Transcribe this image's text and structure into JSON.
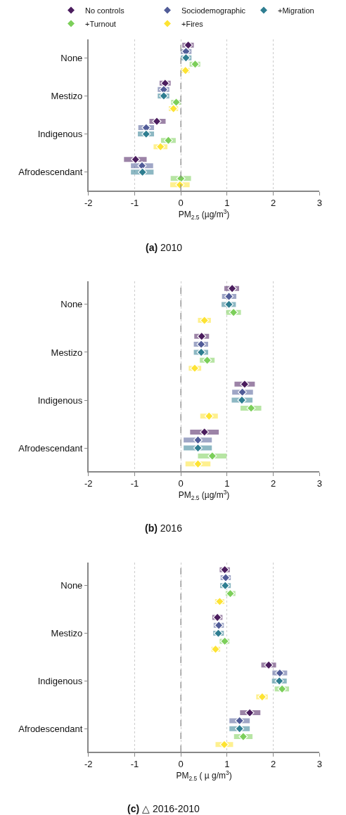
{
  "chart_data": [
    {
      "type": "scatter",
      "orientation": "horizontal",
      "title": "(a) 2010",
      "xlabel": "PM$_{2.5}$ (µg/m$^{3}$)",
      "categories": [
        "None",
        "Mestizo",
        "Indigenous",
        "Afrodescendant"
      ],
      "xlim": [
        -2,
        3
      ],
      "xticks": [
        -2,
        -1,
        0,
        1,
        2,
        3
      ],
      "grid": "x",
      "marker": "diamond",
      "legend": "top",
      "ref_lines": [
        {
          "axis": "x",
          "value": 0,
          "line_style": "dashed",
          "color": "#8c8c8c"
        }
      ],
      "series": [
        {
          "name": "No controls",
          "color": "#4b1d5e",
          "values": [
            0.16,
            -0.34,
            -0.52,
            -0.98
          ],
          "errors": [
            [
              0.03,
              0.28
            ],
            [
              -0.46,
              -0.22
            ],
            [
              -0.68,
              -0.33
            ],
            [
              -1.23,
              -0.74
            ]
          ]
        },
        {
          "name": "Sociodemographic",
          "color": "#515c98",
          "values": [
            0.11,
            -0.37,
            -0.75,
            -0.84
          ],
          "errors": [
            [
              0.0,
              0.23
            ],
            [
              -0.5,
              -0.25
            ],
            [
              -0.92,
              -0.58
            ],
            [
              -1.08,
              -0.6
            ]
          ]
        },
        {
          "name": "+Migration",
          "color": "#2f7e91",
          "values": [
            0.11,
            -0.37,
            -0.75,
            -0.83
          ],
          "errors": [
            [
              0.0,
              0.23
            ],
            [
              -0.5,
              -0.25
            ],
            [
              -0.93,
              -0.58
            ],
            [
              -1.08,
              -0.59
            ]
          ]
        },
        {
          "name": "+Turnout",
          "color": "#7ccf5a",
          "values": [
            0.31,
            -0.1,
            -0.27,
            0.0
          ],
          "errors": [
            [
              0.19,
              0.42
            ],
            [
              -0.21,
              0.0
            ],
            [
              -0.43,
              -0.11
            ],
            [
              -0.22,
              0.22
            ]
          ]
        },
        {
          "name": "+Fires",
          "color": "#fde333",
          "values": [
            0.1,
            -0.16,
            -0.44,
            -0.02
          ],
          "errors": [
            [
              0.0,
              0.19
            ],
            [
              -0.26,
              -0.06
            ],
            [
              -0.59,
              -0.29
            ],
            [
              -0.23,
              0.19
            ]
          ]
        }
      ]
    },
    {
      "type": "scatter",
      "orientation": "horizontal",
      "title": "(b) 2016",
      "xlabel": "PM$_{2.5}$ (µg/m$^{3}$)",
      "categories": [
        "None",
        "Mestizo",
        "Indigenous",
        "Afrodescendant"
      ],
      "xlim": [
        -2,
        3
      ],
      "xticks": [
        -2,
        -1,
        0,
        1,
        2,
        3
      ],
      "grid": "x",
      "marker": "diamond",
      "ref_lines": [
        {
          "axis": "x",
          "value": 0,
          "line_style": "dashed",
          "color": "#8c8c8c"
        }
      ],
      "series": [
        {
          "color": "#4b1d5e",
          "values": [
            1.11,
            0.45,
            1.38,
            0.51
          ],
          "errors": [
            [
              0.94,
              1.26
            ],
            [
              0.29,
              0.61
            ],
            [
              1.16,
              1.6
            ],
            [
              0.2,
              0.82
            ]
          ]
        },
        {
          "color": "#515c98",
          "values": [
            1.04,
            0.44,
            1.33,
            0.37
          ],
          "errors": [
            [
              0.89,
              1.2
            ],
            [
              0.28,
              0.59
            ],
            [
              1.11,
              1.56
            ],
            [
              0.06,
              0.67
            ]
          ]
        },
        {
          "color": "#2f7e91",
          "values": [
            1.04,
            0.44,
            1.32,
            0.37
          ],
          "errors": [
            [
              0.88,
              1.19
            ],
            [
              0.28,
              0.59
            ],
            [
              1.1,
              1.55
            ],
            [
              0.06,
              0.67
            ]
          ]
        },
        {
          "color": "#7ccf5a",
          "values": [
            1.14,
            0.57,
            1.52,
            0.68
          ],
          "errors": [
            [
              0.98,
              1.3
            ],
            [
              0.41,
              0.73
            ],
            [
              1.29,
              1.74
            ],
            [
              0.37,
              0.99
            ]
          ]
        },
        {
          "color": "#fde333",
          "values": [
            0.51,
            0.3,
            0.61,
            0.37
          ],
          "errors": [
            [
              0.37,
              0.65
            ],
            [
              0.17,
              0.44
            ],
            [
              0.42,
              0.8
            ],
            [
              0.1,
              0.64
            ]
          ]
        }
      ]
    },
    {
      "type": "scatter",
      "orientation": "horizontal",
      "title": "(c) △ 2016-2010",
      "xlabel": "PM$_{2.5}$ ( µ g/m$^{3}$)",
      "categories": [
        "None",
        "Mestizo",
        "Indigenous",
        "Afrodescendant"
      ],
      "xlim": [
        -2,
        3
      ],
      "xticks": [
        -2,
        -1,
        0,
        1,
        2,
        3
      ],
      "grid": "x",
      "marker": "diamond",
      "ref_lines": [
        {
          "axis": "x",
          "value": 0,
          "line_style": "dashed",
          "color": "#8c8c8c"
        }
      ],
      "series": [
        {
          "color": "#4b1d5e",
          "values": [
            0.95,
            0.79,
            1.9,
            1.49
          ],
          "errors": [
            [
              0.84,
              1.06
            ],
            [
              0.68,
              0.9
            ],
            [
              1.74,
              2.06
            ],
            [
              1.28,
              1.72
            ]
          ]
        },
        {
          "color": "#515c98",
          "values": [
            0.97,
            0.82,
            2.14,
            1.27
          ],
          "errors": [
            [
              0.86,
              1.08
            ],
            [
              0.71,
              0.93
            ],
            [
              1.98,
              2.3
            ],
            [
              1.05,
              1.49
            ]
          ]
        },
        {
          "color": "#2f7e91",
          "values": [
            0.96,
            0.81,
            2.13,
            1.27
          ],
          "errors": [
            [
              0.85,
              1.08
            ],
            [
              0.7,
              0.93
            ],
            [
              1.97,
              2.29
            ],
            [
              1.05,
              1.49
            ]
          ]
        },
        {
          "color": "#7ccf5a",
          "values": [
            1.07,
            0.95,
            2.19,
            1.35
          ],
          "errors": [
            [
              0.97,
              1.18
            ],
            [
              0.84,
              1.05
            ],
            [
              2.03,
              2.34
            ],
            [
              1.15,
              1.55
            ]
          ]
        },
        {
          "color": "#fde333",
          "values": [
            0.84,
            0.75,
            1.76,
            0.94
          ],
          "errors": [
            [
              0.74,
              0.94
            ],
            [
              0.66,
              0.85
            ],
            [
              1.63,
              1.88
            ],
            [
              0.75,
              1.13
            ]
          ]
        }
      ]
    }
  ]
}
